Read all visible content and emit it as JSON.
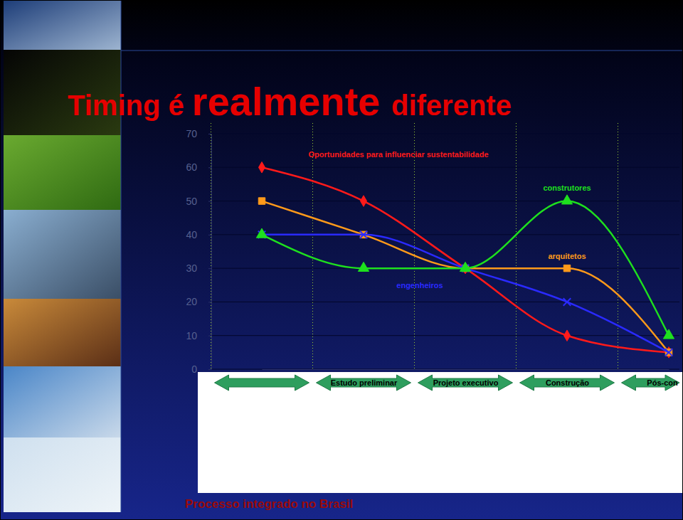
{
  "chart_data": {
    "type": "line",
    "title": "Timing é realmente diferente",
    "subtitle": "Processo integrado no Brasil",
    "categories": [
      null,
      "Estudo preliminar",
      "Projeto executivo",
      "Construção",
      "Pós-con"
    ],
    "ylim": [
      0,
      70
    ],
    "yticks": [
      0,
      10,
      20,
      30,
      40,
      50,
      60,
      70
    ],
    "grid": true,
    "series": [
      {
        "name": "Oportunidades para influenciar sustentabilidade",
        "color": "#ff1a1a",
        "marker": "diamond",
        "values": [
          60,
          50,
          30,
          10,
          5
        ]
      },
      {
        "name": "arquitetos",
        "color": "#ff9a1a",
        "marker": "square",
        "values": [
          50,
          40,
          30,
          30,
          5
        ]
      },
      {
        "name": "engenheiros",
        "color": "#2a2aff",
        "marker": "x",
        "values": [
          40,
          40,
          30,
          20,
          5
        ]
      },
      {
        "name": "construtores",
        "color": "#1ee01e",
        "marker": "triangle",
        "values": [
          40,
          30,
          30,
          50,
          10
        ]
      }
    ]
  }
}
